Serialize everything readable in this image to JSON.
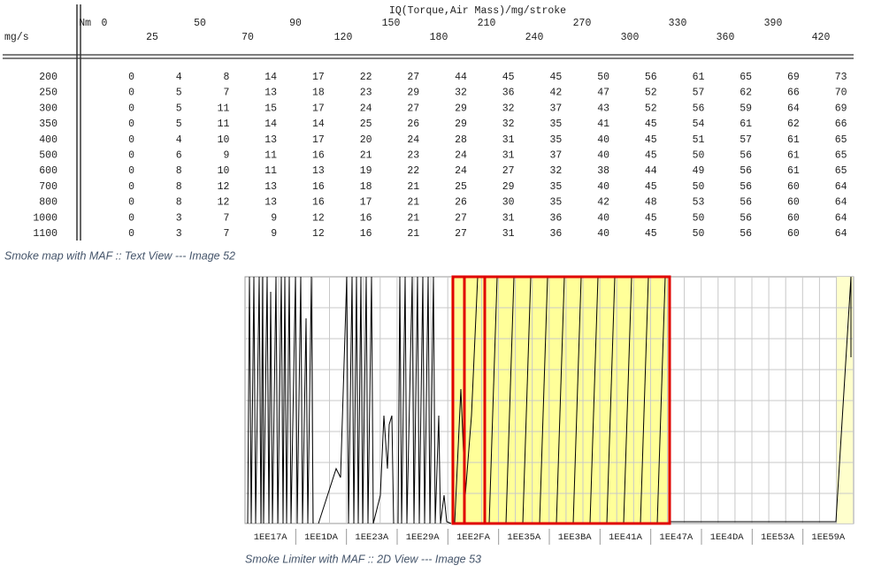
{
  "table": {
    "title": "IQ(Torque,Air Mass)/mg/stroke",
    "column_axis": "Nm",
    "row_axis": "mg/s",
    "columns": [
      0,
      25,
      50,
      70,
      90,
      120,
      150,
      180,
      210,
      240,
      270,
      300,
      330,
      360,
      390,
      420
    ],
    "rows": [
      {
        "label": 200,
        "values": [
          0,
          4,
          8,
          14,
          17,
          22,
          27,
          44,
          45,
          45,
          50,
          56,
          61,
          65,
          69,
          73
        ]
      },
      {
        "label": 250,
        "values": [
          0,
          5,
          7,
          13,
          18,
          23,
          29,
          32,
          36,
          42,
          47,
          52,
          57,
          62,
          66,
          70
        ]
      },
      {
        "label": 300,
        "values": [
          0,
          5,
          11,
          15,
          17,
          24,
          27,
          29,
          32,
          37,
          43,
          52,
          56,
          59,
          64,
          69
        ]
      },
      {
        "label": 350,
        "values": [
          0,
          5,
          11,
          14,
          14,
          25,
          26,
          29,
          32,
          35,
          41,
          45,
          54,
          61,
          62,
          66
        ]
      },
      {
        "label": 400,
        "values": [
          0,
          4,
          10,
          13,
          17,
          20,
          24,
          28,
          31,
          35,
          40,
          45,
          51,
          57,
          61,
          65
        ]
      },
      {
        "label": 500,
        "values": [
          0,
          6,
          9,
          11,
          16,
          21,
          23,
          24,
          31,
          37,
          40,
          45,
          50,
          56,
          61,
          65
        ]
      },
      {
        "label": 600,
        "values": [
          0,
          8,
          10,
          11,
          13,
          19,
          22,
          24,
          27,
          32,
          38,
          44,
          49,
          56,
          61,
          65
        ]
      },
      {
        "label": 700,
        "values": [
          0,
          8,
          12,
          13,
          16,
          18,
          21,
          25,
          29,
          35,
          40,
          45,
          50,
          56,
          60,
          64
        ]
      },
      {
        "label": 800,
        "values": [
          0,
          8,
          12,
          13,
          16,
          17,
          21,
          26,
          30,
          35,
          42,
          48,
          53,
          56,
          60,
          64
        ]
      },
      {
        "label": 1000,
        "values": [
          0,
          3,
          7,
          9,
          12,
          16,
          21,
          27,
          31,
          36,
          40,
          45,
          50,
          56,
          60,
          64
        ]
      },
      {
        "label": 1100,
        "values": [
          0,
          3,
          7,
          9,
          12,
          16,
          21,
          27,
          31,
          36,
          40,
          45,
          50,
          56,
          60,
          64
        ]
      }
    ],
    "caption": "Smoke map with MAF :: Text View --- Image 52"
  },
  "view": {
    "x_labels": [
      "1EE17A",
      "1EE1DA",
      "1EE23A",
      "1EE29A",
      "1EE2FA",
      "1EE35A",
      "1EE3BA",
      "1EE41A",
      "1EE47A",
      "1EE4DA",
      "1EE53A",
      "1EE59A"
    ],
    "caption": "Smoke Limiter with MAF :: 2D View --- Image 53"
  }
}
